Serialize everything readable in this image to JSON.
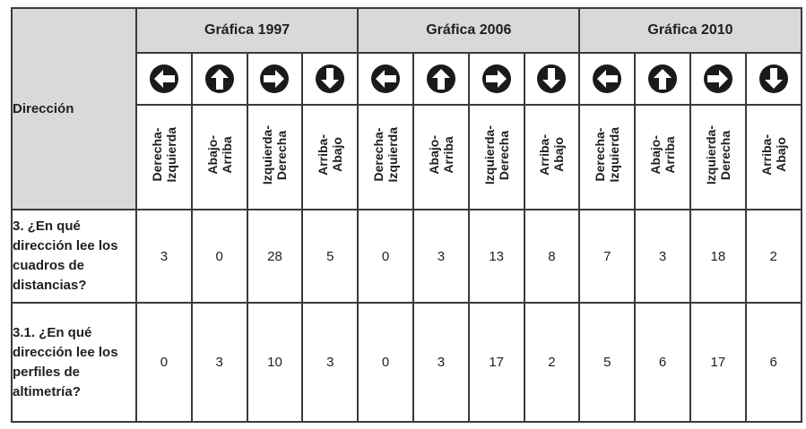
{
  "table": {
    "row_header_label": "Dirección",
    "groups": [
      {
        "title": "Gráfica 1997"
      },
      {
        "title": "Gráfica 2006"
      },
      {
        "title": "Gráfica 2010"
      }
    ],
    "directions": [
      {
        "icon": "arrow-left-icon",
        "label": "Derecha-\nIzquierda"
      },
      {
        "icon": "arrow-up-icon",
        "label": "Abajo-\nArriba"
      },
      {
        "icon": "arrow-right-icon",
        "label": "Izquierda-\nDerecha"
      },
      {
        "icon": "arrow-down-icon",
        "label": "Arriba-\nAbajo"
      }
    ],
    "rows": [
      {
        "question": "3. ¿En qué dirección lee los cuadros de distancias?",
        "values": [
          "3",
          "0",
          "28",
          "5",
          "0",
          "3",
          "13",
          "8",
          "7",
          "3",
          "18",
          "2"
        ]
      },
      {
        "question": "3.1. ¿En qué dirección lee los perfiles de altimetría?",
        "values": [
          "0",
          "3",
          "10",
          "3",
          "0",
          "3",
          "17",
          "2",
          "5",
          "6",
          "17",
          "6"
        ]
      }
    ]
  }
}
